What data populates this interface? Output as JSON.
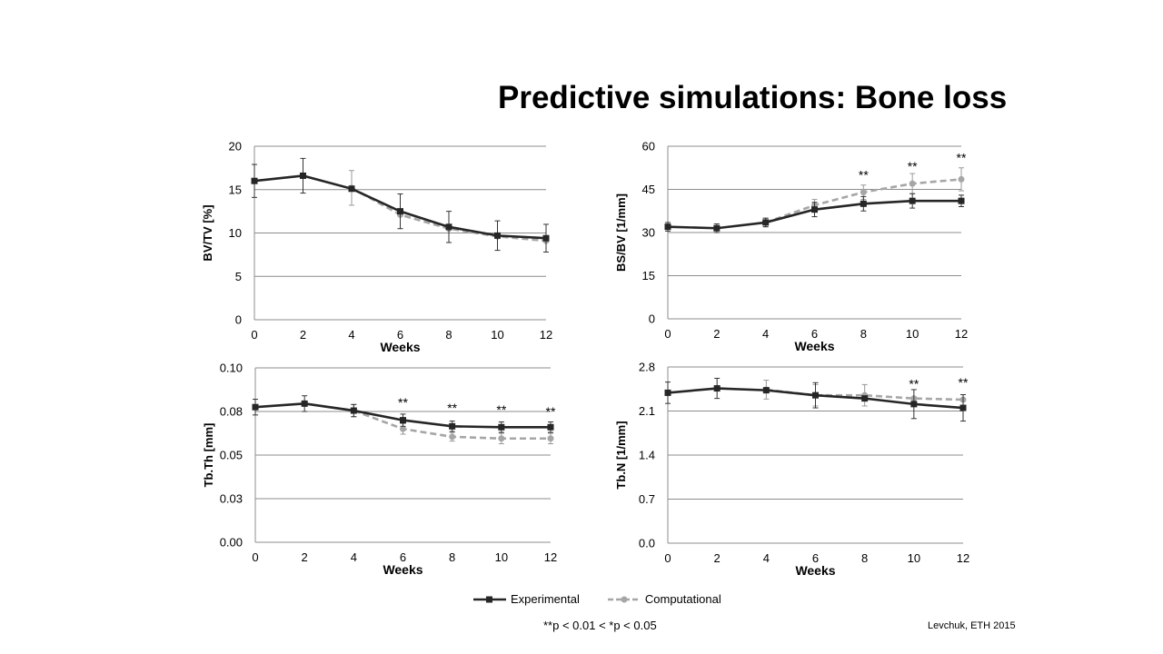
{
  "title": "Predictive simulations: Bone loss",
  "legend": {
    "experimental": "Experimental",
    "computational": "Computational"
  },
  "footnote": "**p < 0.01 < *p < 0.05",
  "citation": "Levchuk, ETH 2015",
  "colors": {
    "experimental": "#262626",
    "computational": "#a6a6a6",
    "grid": "#8c8c8c"
  },
  "chart_data": [
    {
      "type": "line",
      "xlabel": "Weeks",
      "ylabel": "BV/TV [%]",
      "x": [
        0,
        2,
        4,
        6,
        8,
        10,
        12
      ],
      "ylim": [
        0,
        20
      ],
      "yticks": [
        "0",
        "5",
        "10",
        "15",
        "20"
      ],
      "series": [
        {
          "name": "Experimental",
          "x": [
            0,
            2,
            4,
            6,
            8,
            10,
            12
          ],
          "values": [
            16.0,
            16.6,
            15.1,
            12.5,
            10.7,
            9.7,
            9.4
          ],
          "err": [
            1.9,
            2.0,
            0,
            2.0,
            1.8,
            1.7,
            1.6
          ]
        },
        {
          "name": "Computational",
          "x": [
            4,
            6,
            8,
            10,
            12
          ],
          "values": [
            15.2,
            12.1,
            10.5,
            9.6,
            9.1
          ],
          "err": [
            2.0,
            0,
            0,
            0,
            0
          ]
        }
      ],
      "annotations": []
    },
    {
      "type": "line",
      "xlabel": "Weeks",
      "ylabel": "BS/BV [1/mm]",
      "x": [
        0,
        2,
        4,
        6,
        8,
        10,
        12
      ],
      "ylim": [
        0,
        60
      ],
      "yticks": [
        "0",
        "15",
        "30",
        "45",
        "60"
      ],
      "series": [
        {
          "name": "Experimental",
          "x": [
            0,
            2,
            4,
            6,
            8,
            10,
            12
          ],
          "values": [
            32.0,
            31.5,
            33.5,
            38.0,
            40.0,
            41.0,
            41.0
          ],
          "err": [
            1.5,
            1.5,
            1.5,
            2.5,
            2.5,
            2.5,
            2.0
          ]
        },
        {
          "name": "Computational",
          "x": [
            4,
            6,
            8,
            10,
            12
          ],
          "values": [
            33.5,
            39.5,
            44.0,
            47.0,
            48.5
          ],
          "err": [
            1.5,
            2.0,
            2.5,
            3.5,
            4.0
          ]
        }
      ],
      "annotations": [
        {
          "x": 8,
          "text": "**",
          "y": 48.5
        },
        {
          "x": 10,
          "text": "**",
          "y": 51.5
        },
        {
          "x": 12,
          "text": "**",
          "y": 54.5
        }
      ]
    },
    {
      "type": "line",
      "xlabel": "Weeks",
      "ylabel": "Tb.Th [mm]",
      "x": [
        0,
        2,
        4,
        6,
        8,
        10,
        12
      ],
      "ylim": [
        0,
        0.1
      ],
      "yticks": [
        "0.00",
        "0.03",
        "0.05",
        "0.08",
        "0.10"
      ],
      "series": [
        {
          "name": "Experimental",
          "x": [
            0,
            2,
            4,
            6,
            8,
            10,
            12
          ],
          "values": [
            0.0775,
            0.0795,
            0.0755,
            0.07,
            0.0665,
            0.066,
            0.066
          ],
          "err": [
            0.0045,
            0.0045,
            0.0035,
            0.0035,
            0.003,
            0.003,
            0.003
          ]
        },
        {
          "name": "Computational",
          "x": [
            4,
            6,
            8,
            10,
            12
          ],
          "values": [
            0.0755,
            0.065,
            0.0605,
            0.0595,
            0.0595
          ],
          "err": [
            0.0035,
            0.003,
            0.0025,
            0.003,
            0.003
          ]
        }
      ],
      "annotations": [
        {
          "x": 6,
          "text": "**",
          "y": 0.0775
        },
        {
          "x": 8,
          "text": "**",
          "y": 0.0745
        },
        {
          "x": 10,
          "text": "**",
          "y": 0.0735
        },
        {
          "x": 12,
          "text": "**",
          "y": 0.0725
        }
      ]
    },
    {
      "type": "line",
      "xlabel": "Weeks",
      "ylabel": "Tb.N [1/mm]",
      "x": [
        0,
        2,
        4,
        6,
        8,
        10,
        12
      ],
      "ylim": [
        0,
        2.8
      ],
      "yticks": [
        "0.0",
        "0.7",
        "1.4",
        "2.1",
        "2.8"
      ],
      "series": [
        {
          "name": "Experimental",
          "x": [
            0,
            2,
            4,
            6,
            8,
            10,
            12
          ],
          "values": [
            2.39,
            2.46,
            2.43,
            2.35,
            2.3,
            2.21,
            2.15
          ],
          "err": [
            0.17,
            0.16,
            0,
            0.2,
            0,
            0.23,
            0.21
          ]
        },
        {
          "name": "Computational",
          "x": [
            4,
            6,
            8,
            10,
            12
          ],
          "values": [
            2.44,
            2.35,
            2.35,
            2.3,
            2.28
          ],
          "err": [
            0.15,
            0.17,
            0.17,
            0,
            0
          ]
        }
      ],
      "annotations": [
        {
          "x": 10,
          "text": "**",
          "y": 2.46
        },
        {
          "x": 12,
          "text": "**",
          "y": 2.48
        }
      ]
    }
  ]
}
